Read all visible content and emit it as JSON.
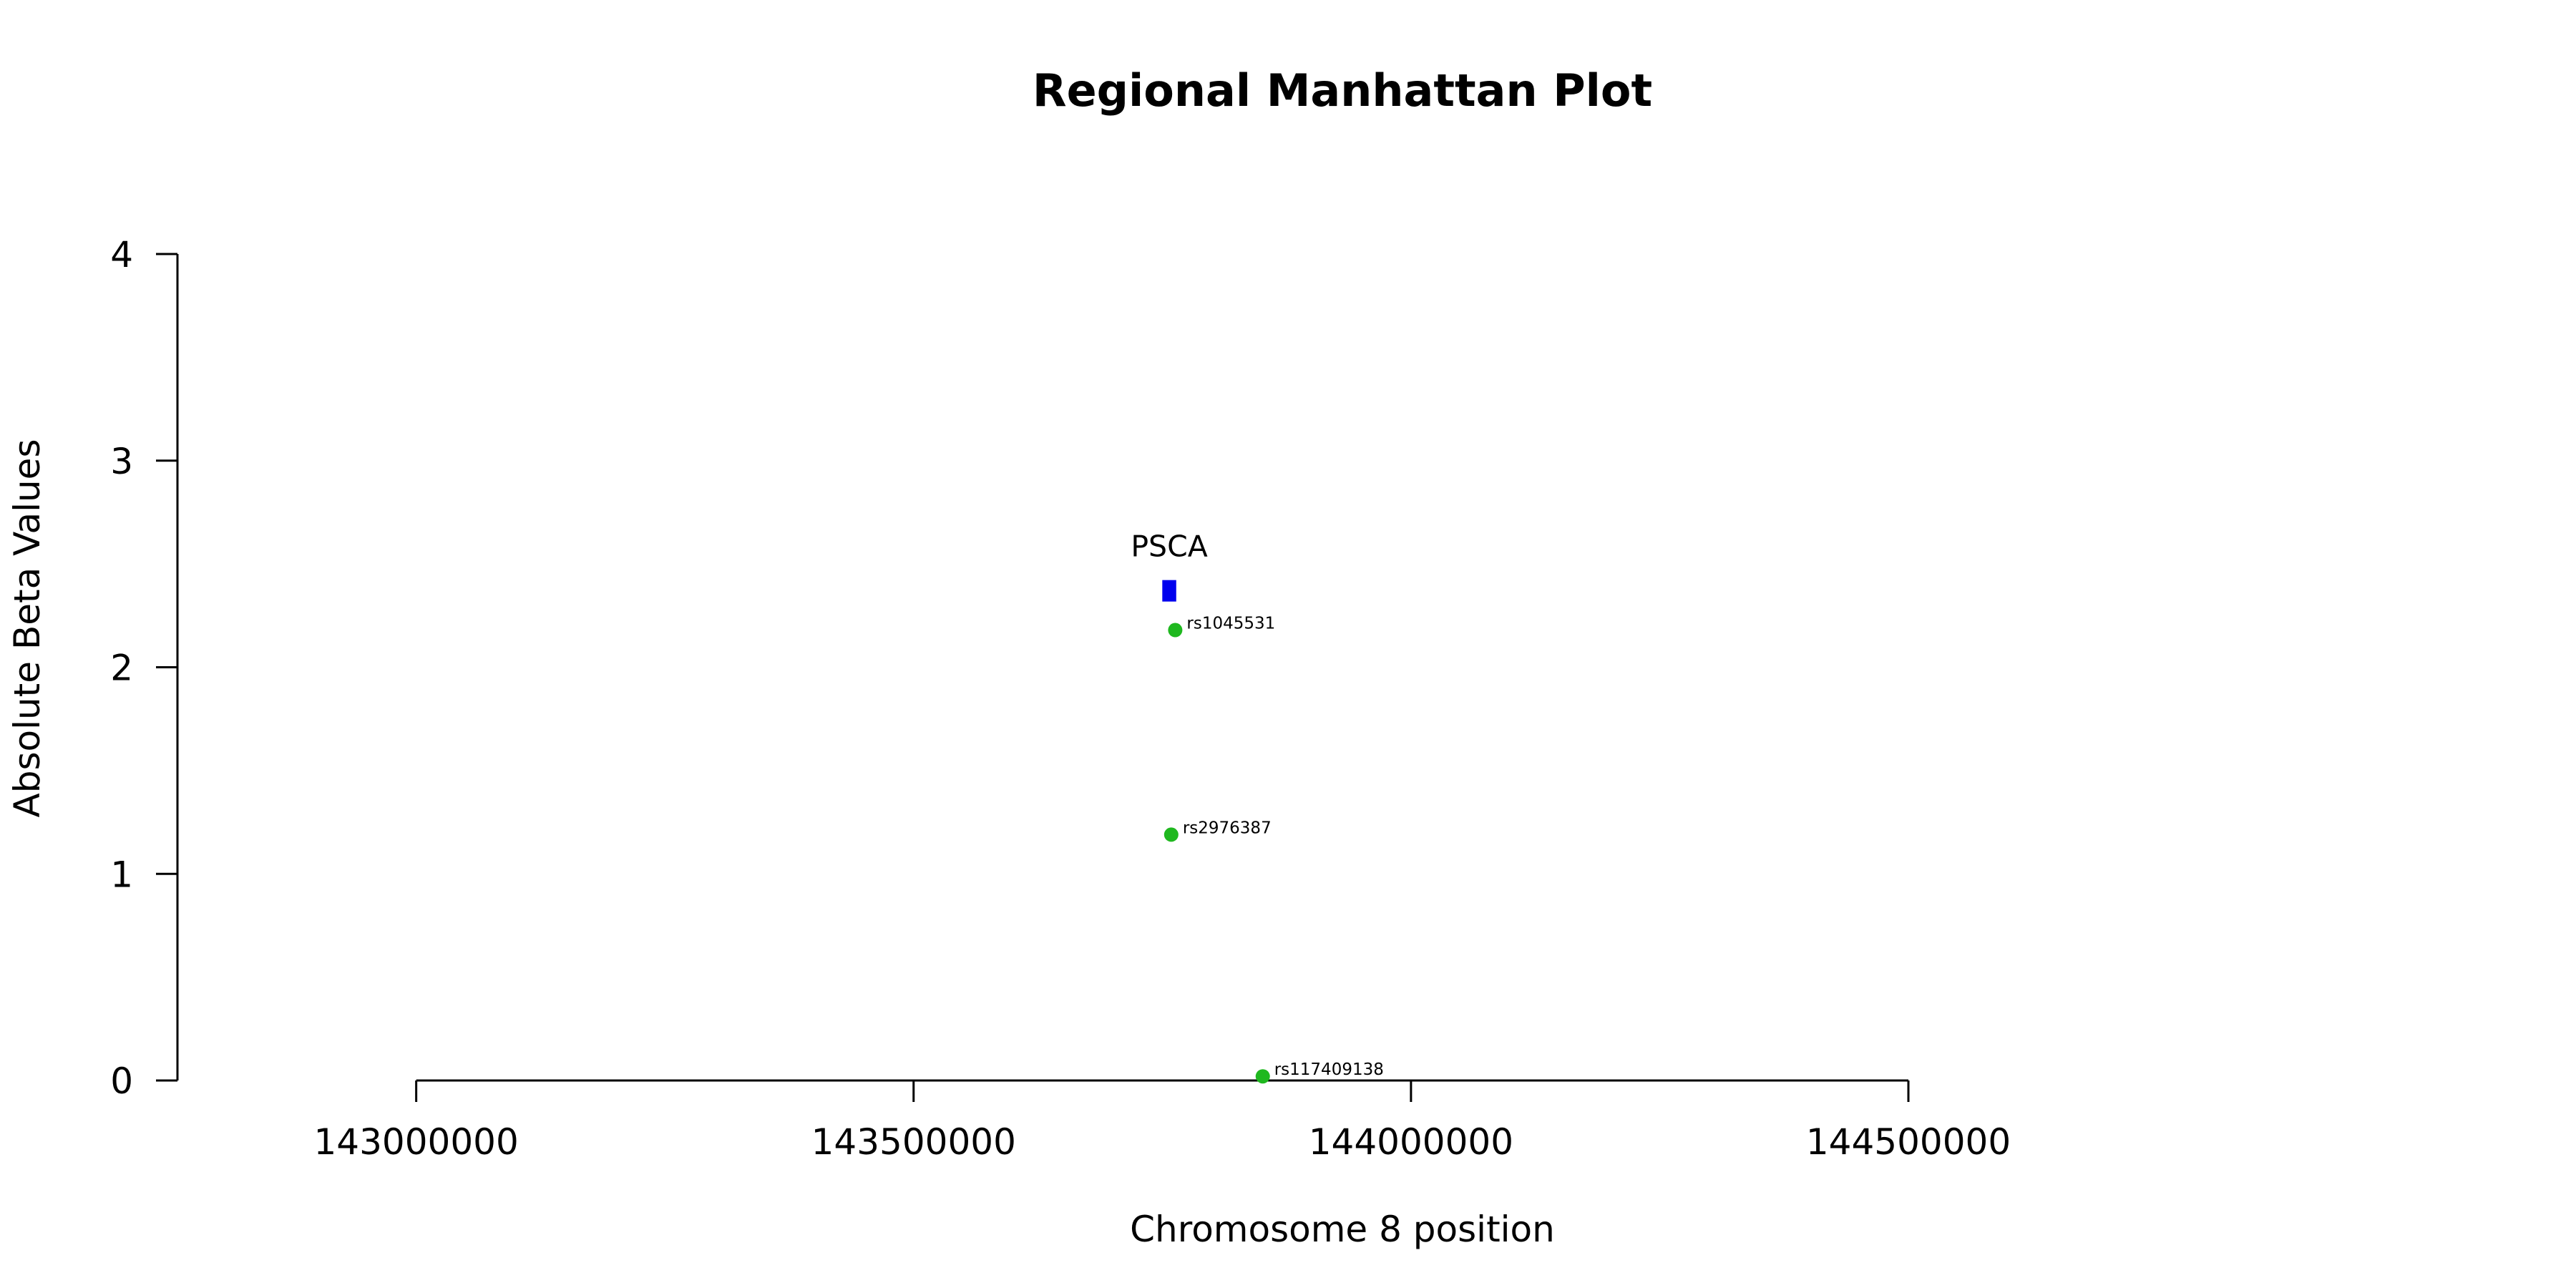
{
  "chart_data": {
    "type": "scatter",
    "title": "Regional Manhattan Plot",
    "xlabel": "Chromosome 8 position",
    "ylabel": "Absolute Beta Values",
    "xlim": [
      142760000,
      145010000
    ],
    "ylim": [
      0,
      4
    ],
    "x_ticks": [
      143000000,
      143500000,
      144000000,
      144500000
    ],
    "y_ticks": [
      0,
      1,
      2,
      3,
      4
    ],
    "grid": false,
    "point_color": "#1fb81f",
    "gene_color": "#0000ee",
    "points": [
      {
        "label": "rs1045531",
        "x": 143763000,
        "y": 2.18
      },
      {
        "label": "rs2976387",
        "x": 143759000,
        "y": 1.19
      },
      {
        "label": "rs117409138",
        "x": 143851000,
        "y": 0.02
      }
    ],
    "genes": [
      {
        "name": "PSCA",
        "start": 143750000,
        "end": 143764000,
        "y": 2.37
      }
    ]
  }
}
